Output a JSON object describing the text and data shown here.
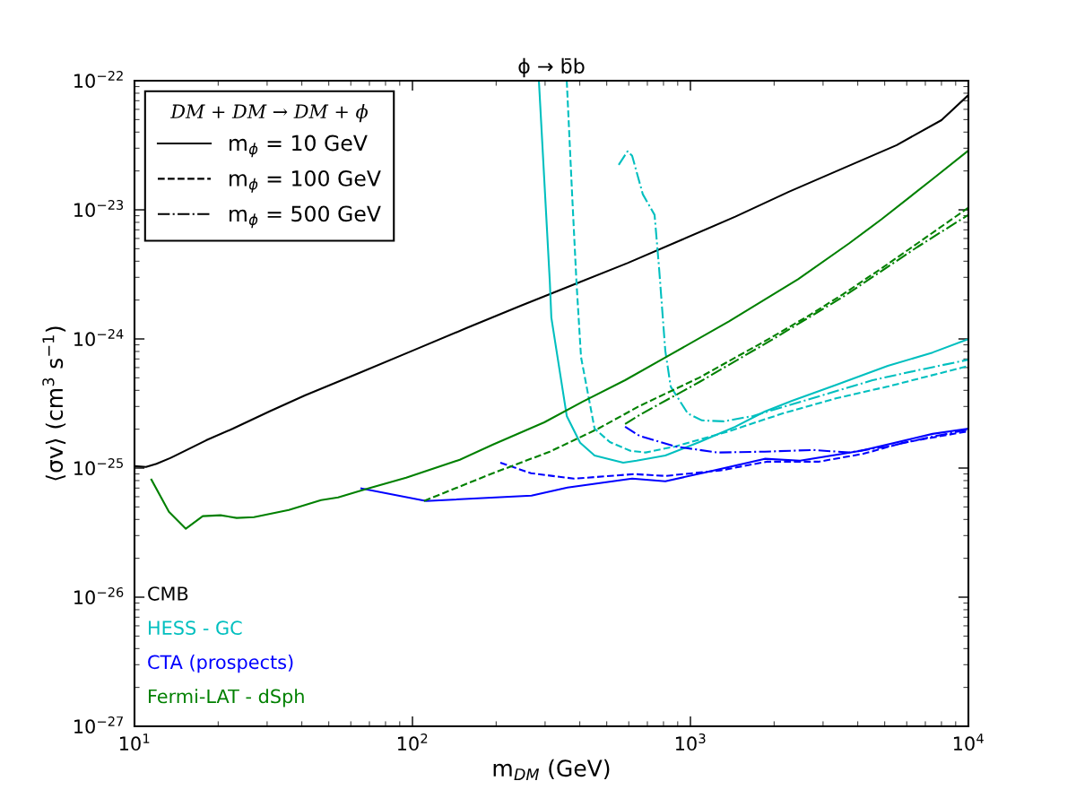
{
  "chart_data": {
    "type": "line",
    "title": "ϕ → b̄b",
    "xlabel": "m$_{DM}$ (GeV)",
    "ylabel": "⟨σv⟩ (cm$^{3}$ s$^{−1}$)",
    "legend_title": "DM + DM → DM + ϕ",
    "legend": "bottom left",
    "annotations": [
      "m$_{ϕ}$ = 10 GeV",
      "m$_{ϕ}$ = 100 GeV",
      "m$_{ϕ}$ = 500 GeV"
    ],
    "log": "xy",
    "grid": false,
    "xlim": [
      10,
      10000
    ],
    "xticks": [
      {
        "value": 10,
        "label": "10$^{1}$"
      },
      {
        "value": 100,
        "label": "10$^{2}$"
      },
      {
        "value": 1000,
        "label": "10$^{3}$"
      },
      {
        "value": 10000,
        "label": "10$^{4}$"
      }
    ],
    "ylim": [
      1e-27,
      1e-22
    ],
    "yticks": [
      {
        "value": 1e-27,
        "label": "10$^{−27}$"
      },
      {
        "value": 1e-26,
        "label": "10$^{−26}$"
      },
      {
        "value": 1e-25,
        "label": "10$^{−25}$"
      },
      {
        "value": 1e-24,
        "label": "10$^{−24}$"
      },
      {
        "value": 1e-23,
        "label": "10$^{−23}$"
      },
      {
        "value": 1e-22,
        "label": "10$^{−22}$"
      }
    ],
    "series": [
      {
        "name": "CMB",
        "color": "#000000",
        "line_style": "solid",
        "x": [
          10,
          11.0,
          12.0,
          13.5,
          18.1,
          22.6,
          30.5,
          41.0,
          64,
          100,
          156,
          244,
          381,
          594,
          929,
          1450,
          2260,
          3530,
          5520,
          8000,
          10000
        ],
        "values": [
          1.035e-25,
          1.02e-25,
          1.08e-25,
          1.2e-25,
          1.64e-25,
          2.02e-25,
          2.74e-25,
          3.65e-25,
          5.43e-25,
          8.11e-25,
          1.21e-24,
          1.8e-24,
          2.64e-24,
          3.87e-24,
          5.85e-24,
          8.85e-24,
          1.38e-23,
          2.09e-23,
          3.17e-23,
          4.95e-23,
          7.74e-23
        ]
      },
      {
        "name": "HESS - GC",
        "color": "#00bfbf",
        "line_style": "solid",
        "x": [
          285,
          312,
          316,
          359,
          401,
          452,
          573,
          640,
          812,
          1077,
          1450,
          1850,
          2320,
          3360,
          5130,
          7430,
          10000
        ],
        "values": [
          1e-22,
          2.77e-24,
          1.46e-24,
          2.53e-25,
          1.57e-25,
          1.25e-25,
          1.1e-25,
          1.14e-25,
          1.25e-25,
          1.59e-25,
          2.09e-25,
          2.74e-25,
          3.32e-25,
          4.42e-25,
          6.18e-25,
          7.85e-25,
          9.97e-25
        ]
      },
      {
        "color": "#00bfbf",
        "line_style": "dashed",
        "x": [
          359,
          375,
          389,
          404,
          452,
          513,
          608,
          690,
          881,
          1377,
          2150,
          3360,
          5130,
          10000
        ],
        "values": [
          1e-22,
          1.36e-23,
          2.77e-24,
          7.24e-25,
          2.02e-25,
          1.59e-25,
          1.36e-25,
          1.32e-25,
          1.47e-25,
          1.93e-25,
          2.65e-25,
          3.48e-25,
          4.28e-25,
          6.18e-25
        ]
      },
      {
        "color": "#00bfbf",
        "line_style": "dashdot",
        "x": [
          552,
          594,
          617,
          674,
          743,
          771,
          812,
          849,
          978,
          1100,
          1315,
          1680,
          2150,
          3120,
          4520,
          6550,
          10000
        ],
        "values": [
          2.23e-23,
          2.84e-23,
          2.62e-23,
          1.32e-23,
          9.14e-24,
          3.57e-24,
          8.11e-25,
          4.28e-25,
          2.65e-25,
          2.34e-25,
          2.3e-25,
          2.53e-25,
          2.97e-25,
          3.77e-25,
          4.79e-25,
          5.71e-25,
          6.91e-25
        ]
      },
      {
        "name": "CTA (prospects)",
        "color": "#0000ff",
        "line_style": "solid",
        "x": [
          65.5,
          112,
          268,
          361,
          617,
          812,
          1135,
          1850,
          2480,
          4100,
          7430,
          10000
        ],
        "values": [
          6.95e-26,
          5.56e-26,
          6.12e-26,
          7.06e-26,
          8.28e-26,
          7.9e-26,
          9.27e-26,
          1.18e-25,
          1.14e-25,
          1.36e-25,
          1.84e-25,
          2.02e-25
        ]
      },
      {
        "color": "#0000ff",
        "line_style": "dashed",
        "x": [
          207,
          267,
          381,
          627,
          812,
          1277,
          1880,
          2890,
          4190,
          5820,
          10000
        ],
        "values": [
          1.1e-25,
          9.12e-26,
          8.28e-26,
          8.98e-26,
          8.69e-26,
          9.57e-26,
          1.12e-25,
          1.12e-25,
          1.29e-25,
          1.57e-25,
          1.93e-25
        ]
      },
      {
        "color": "#0000ff",
        "line_style": "dashdot",
        "x": [
          582,
          655,
          881,
          1250,
          1850,
          2770,
          3720,
          5130,
          7430,
          10000
        ],
        "values": [
          2.09e-25,
          1.78e-25,
          1.47e-25,
          1.32e-25,
          1.34e-25,
          1.38e-25,
          1.32e-25,
          1.47e-25,
          1.75e-25,
          1.99e-25
        ]
      },
      {
        "name": "Fermi-LAT - dSph",
        "color": "#008000",
        "line_style": "solid",
        "x": [
          11.5,
          13.3,
          15.3,
          17.6,
          20.4,
          23.3,
          26.9,
          35.9,
          46.9,
          54.0,
          67.5,
          94.9,
          148,
          195,
          298,
          410,
          582,
          818,
          1377,
          2440,
          3720,
          4870,
          7430,
          10000
        ],
        "values": [
          8.15e-26,
          4.59e-26,
          3.39e-26,
          4.24e-26,
          4.31e-26,
          4.11e-26,
          4.17e-26,
          4.74e-26,
          5.65e-26,
          5.93e-26,
          6.84e-26,
          8.41e-26,
          1.16e-25,
          1.52e-25,
          2.26e-25,
          3.27e-25,
          4.79e-25,
          7.24e-25,
          1.37e-24,
          2.9e-24,
          5.49e-24,
          8.45e-24,
          1.73e-23,
          2.88e-23
        ]
      },
      {
        "color": "#008000",
        "line_style": "dashed",
        "x": [
          110,
          191,
          312,
          466,
          655,
          1077,
          1910,
          2630,
          3530,
          4870,
          6550,
          10000
        ],
        "values": [
          5.56e-26,
          8.98e-26,
          1.34e-25,
          2.02e-25,
          3.02e-25,
          5.02e-25,
          9.97e-25,
          1.49e-24,
          2.21e-24,
          3.52e-24,
          5.49e-24,
          1.04e-23
        ]
      },
      {
        "color": "#008000",
        "line_style": "dashdot",
        "x": [
          582,
          655,
          1077,
          1910,
          3530,
          6550,
          10000
        ],
        "values": [
          2.19e-25,
          2.57e-25,
          4.64e-25,
          9.51e-25,
          2.11e-24,
          5.15e-24,
          9.14e-24
        ]
      }
    ]
  }
}
